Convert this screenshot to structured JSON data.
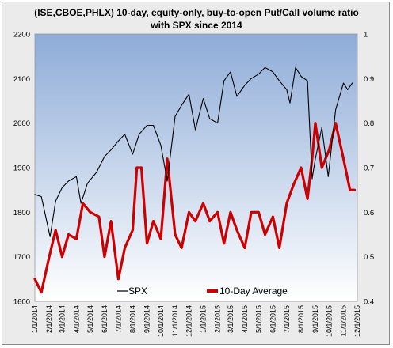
{
  "chart_data": {
    "type": "line",
    "title_line1": "(ISE,CBOE,PHLX) 10-day, equity-only, buy-to-open Put/Call volume ratio",
    "title_line2": "with SPX since 2014",
    "left_axis": {
      "ylim": [
        1600,
        2200
      ],
      "ticks": [
        "1600",
        "1700",
        "1800",
        "1900",
        "2000",
        "2100",
        "2200"
      ]
    },
    "right_axis": {
      "ylim": [
        0.4,
        1.0
      ],
      "ticks": [
        "0.4",
        "0.5",
        "0.6",
        "0.7",
        "0.8",
        "0.9",
        "1"
      ]
    },
    "x_ticks": [
      "1/1/2014",
      "2/1/2014",
      "3/1/2014",
      "4/1/2014",
      "5/1/2014",
      "6/1/2014",
      "7/1/2014",
      "8/1/2014",
      "9/1/2014",
      "10/1/2014",
      "11/1/2014",
      "12/1/2014",
      "1/1/2015",
      "2/1/2015",
      "3/1/2015",
      "4/1/2015",
      "5/1/2015",
      "6/1/2015",
      "7/1/2015",
      "8/1/2015",
      "9/1/2015",
      "10/1/2015",
      "11/1/2015",
      "12/1/2015"
    ],
    "legend_placement": "bottom",
    "series": [
      {
        "name": "SPX",
        "axis": "left",
        "color": "#000000",
        "x": [
          "1/1/2014",
          "1/15/2014",
          "2/3/2014",
          "2/15/2014",
          "3/1/2014",
          "3/15/2014",
          "4/1/2014",
          "4/11/2014",
          "4/25/2014",
          "5/15/2014",
          "6/1/2014",
          "6/15/2014",
          "7/1/2014",
          "7/15/2014",
          "8/1/2014",
          "8/15/2014",
          "9/1/2014",
          "9/15/2014",
          "10/1/2014",
          "10/15/2014",
          "11/1/2014",
          "11/15/2014",
          "12/1/2014",
          "12/15/2014",
          "1/1/2015",
          "1/15/2015",
          "2/1/2015",
          "2/15/2015",
          "3/1/2015",
          "3/15/2015",
          "4/1/2015",
          "4/15/2015",
          "5/1/2015",
          "5/15/2015",
          "6/1/2015",
          "6/15/2015",
          "7/1/2015",
          "7/8/2015",
          "7/20/2015",
          "8/1/2015",
          "8/15/2015",
          "8/25/2015",
          "9/1/2015",
          "9/15/2015",
          "9/29/2015",
          "10/15/2015",
          "11/1/2015",
          "11/10/2015",
          "11/20/2015"
        ],
        "values": [
          1840,
          1835,
          1745,
          1825,
          1855,
          1870,
          1880,
          1820,
          1865,
          1890,
          1925,
          1940,
          1960,
          1975,
          1930,
          1975,
          1995,
          1995,
          1950,
          1870,
          2015,
          2040,
          2065,
          1985,
          2055,
          2010,
          2000,
          2095,
          2115,
          2060,
          2085,
          2100,
          2110,
          2125,
          2115,
          2095,
          2075,
          2045,
          2125,
          2105,
          2095,
          1875,
          1920,
          1990,
          1880,
          2030,
          2090,
          2075,
          2090
        ]
      },
      {
        "name": "10-Day Average",
        "axis": "right",
        "color": "#cc0000",
        "x": [
          "1/1/2014",
          "1/15/2014",
          "2/1/2014",
          "2/15/2014",
          "3/1/2014",
          "3/15/2014",
          "4/1/2014",
          "4/15/2014",
          "5/1/2014",
          "5/20/2014",
          "6/1/2014",
          "6/15/2014",
          "7/1/2014",
          "7/15/2014",
          "8/1/2014",
          "8/10/2014",
          "8/20/2014",
          "9/1/2014",
          "9/15/2014",
          "10/1/2014",
          "10/15/2014",
          "11/1/2014",
          "11/15/2014",
          "12/1/2014",
          "12/15/2014",
          "1/1/2015",
          "1/15/2015",
          "2/1/2015",
          "2/15/2015",
          "3/1/2015",
          "3/15/2015",
          "4/1/2015",
          "4/15/2015",
          "5/1/2015",
          "5/15/2015",
          "6/1/2015",
          "6/15/2015",
          "7/1/2015",
          "7/15/2015",
          "8/1/2015",
          "8/15/2015",
          "8/25/2015",
          "9/1/2015",
          "9/15/2015",
          "10/1/2015",
          "10/15/2015",
          "11/1/2015",
          "11/15/2015",
          "11/25/2015"
        ],
        "values": [
          0.45,
          0.42,
          0.5,
          0.56,
          0.5,
          0.55,
          0.54,
          0.62,
          0.6,
          0.59,
          0.5,
          0.58,
          0.45,
          0.52,
          0.56,
          0.7,
          0.7,
          0.53,
          0.58,
          0.54,
          0.72,
          0.55,
          0.52,
          0.6,
          0.58,
          0.62,
          0.58,
          0.6,
          0.53,
          0.6,
          0.56,
          0.52,
          0.6,
          0.6,
          0.55,
          0.59,
          0.52,
          0.62,
          0.66,
          0.7,
          0.63,
          0.72,
          0.8,
          0.7,
          0.74,
          0.8,
          0.72,
          0.65,
          0.65
        ]
      }
    ]
  }
}
